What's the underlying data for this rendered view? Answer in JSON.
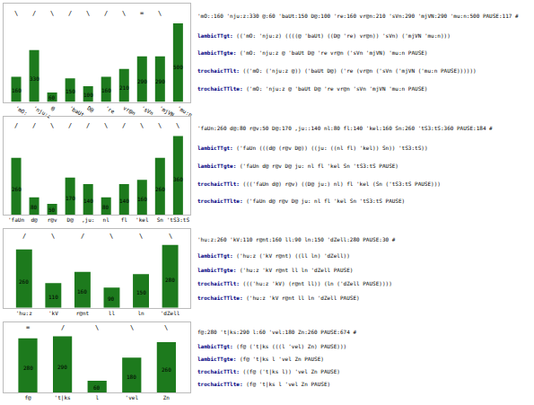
{
  "chart_data": [
    {
      "type": "bar",
      "categories": [
        "'mO:",
        "'nju:z",
        "@",
        "'baUt",
        "D@",
        "'re",
        "vr@n",
        "'sVn",
        "'mjVN",
        "'mu:n"
      ],
      "values": [
        160,
        330,
        60,
        150,
        100,
        160,
        210,
        290,
        290,
        500
      ],
      "color": "#1d7a1d",
      "data_labels": true,
      "grid": false,
      "tick_labels": "x",
      "ylim": [
        0,
        625
      ],
      "annotations": [
        {
          "category": "'mO:",
          "text": "\\"
        },
        {
          "category": "'nju:z",
          "text": "/"
        },
        {
          "category": "@",
          "text": "\\"
        },
        {
          "category": "'baUt",
          "text": "/"
        },
        {
          "category": "D@",
          "text": "\\"
        },
        {
          "category": "'re",
          "text": "/"
        },
        {
          "category": "vr@n",
          "text": "\\"
        },
        {
          "category": "'sVn",
          "text": "="
        },
        {
          "category": "'mjVN",
          "text": "\\"
        }
      ],
      "text_panel": {
        "color": "#000000",
        "prefix_color": "#000080",
        "top": "'mO::160 'nju:z:330 @:60 'baUt:150 D@:100 're:160 vr@n:210 'sVn:290 'mjVN:290 'mu:n:500 PAUSE:117 #",
        "lines": [
          {
            "prefix": "lambicTTgt:",
            "rest": " (('mO: 'nju:z) ((((@ 'baUt) ((D@ 're) vr@n)) 'sVn) ('mjVN 'mu:n)))"
          },
          {
            "prefix": "lambicTTgte:",
            "rest": " ('mO: 'nju:z @ 'baUt D@ 're vr@n ('sVn 'mjVN) 'mu:n PAUSE)"
          },
          {
            "prefix": "trochaicTTlt:",
            "rest": " (('mO: ('nju:z @)) ('baUt D@) ('re (vr@n ('sVn ('mjVN ('mu:n PAUSE))))))"
          },
          {
            "prefix": "trochaicTTlte:",
            "rest": " ('mO: 'nju:z @ 'baUt D@ 're vr@n 'sVn 'mjVN 'mu:n PAUSE)"
          }
        ]
      }
    },
    {
      "type": "bar",
      "categories": [
        "'faUn",
        "d@",
        "r@v",
        "D@",
        ",ju:",
        "nl",
        "fl",
        "'kel",
        "Sn",
        "'tS3:tS"
      ],
      "values": [
        260,
        80,
        50,
        170,
        140,
        80,
        140,
        160,
        260,
        360
      ],
      "color": "#1d7a1d",
      "data_labels": true,
      "grid": false,
      "tick_labels": "x",
      "ylim": [
        0,
        450
      ],
      "annotations": [
        {
          "category": "'faUn",
          "text": "/"
        },
        {
          "category": "d@",
          "text": "/"
        },
        {
          "category": "r@v",
          "text": "\\"
        },
        {
          "category": "D@",
          "text": "/"
        },
        {
          "category": ",ju:",
          "text": "/"
        },
        {
          "category": "nl",
          "text": "\\"
        },
        {
          "category": "fl",
          "text": "/"
        },
        {
          "category": "'kel",
          "text": "\\"
        },
        {
          "category": "Sn",
          "text": "\\"
        },
        {
          "category": "'tS3:tS",
          "text": "\\"
        }
      ],
      "text_panel": {
        "color": "#000000",
        "prefix_color": "#000080",
        "top": "'faUn:260 d@:80 r@v:50 D@:170 ,ju::140 nl:80 fl:140 'kel:160 Sn:260 'tS3:tS:360 PAUSE:184 #",
        "lines": [
          {
            "prefix": "lambicTTgt:",
            "rest": " ('faUn (((d@ (r@v D@)) ((ju: ((nl fl) 'kel)) Sn)) 'tS3:tS))"
          },
          {
            "prefix": "lambicTTgte:",
            "rest": " ('faUn d@ r@v D@ ju: nl fl 'kel Sn 'tS3:tS PAUSE)"
          },
          {
            "prefix": "trochaicTTlt:",
            "rest": " ((('faUn d@) r@v) ((D@ ju:) nl) fl 'kel (Sn ('tS3:tS PAUSE)))"
          },
          {
            "prefix": "trochaicTTlte:",
            "rest": " ('faUn d@ r@v D@ ju: nl fl 'kel Sn 'tS3:tS PAUSE)"
          }
        ]
      }
    },
    {
      "type": "bar",
      "categories": [
        "'hu:z",
        "'kV",
        "r@nt",
        "ll",
        "ln",
        "'dZell"
      ],
      "values": [
        260,
        110,
        160,
        90,
        150,
        280
      ],
      "color": "#1d7a1d",
      "data_labels": true,
      "grid": false,
      "tick_labels": "x",
      "ylim": [
        0,
        350
      ],
      "annotations": [
        {
          "category": "'hu:z",
          "text": "/"
        },
        {
          "category": "'kV",
          "text": "\\"
        },
        {
          "category": "r@nt",
          "text": "/"
        },
        {
          "category": "ll",
          "text": "\\"
        },
        {
          "category": "ln",
          "text": "\\"
        },
        {
          "category": "'dZell",
          "text": "\\"
        }
      ],
      "text_panel": {
        "color": "#000000",
        "prefix_color": "#000080",
        "top": "'hu:z:260 'kV:110 r@nt:160 ll:90 ln:150 'dZell:280 PAUSE:30 #",
        "lines": [
          {
            "prefix": "lambicTTgt:",
            "rest": " ('hu:z ('kV r@nt) ((ll ln) 'dZell))"
          },
          {
            "prefix": "lambicTTgte:",
            "rest": " ('hu:z 'kV r@nt ll ln 'dZell PAUSE)"
          },
          {
            "prefix": "trochaicTTlt:",
            "rest": " ((('hu:z 'kV) (r@nt ll)) (ln ('dZell PAUSE))))"
          },
          {
            "prefix": "trochaicTTlte:",
            "rest": " ('hu:z 'kV r@nt ll ln 'dZell PAUSE)"
          }
        ]
      }
    },
    {
      "type": "bar",
      "categories": [
        "f@",
        "'t|ks",
        "l",
        "'vel",
        "Zn"
      ],
      "values": [
        280,
        290,
        60,
        180,
        260
      ],
      "color": "#1d7a1d",
      "data_labels": true,
      "grid": false,
      "tick_labels": "x",
      "ylim": [
        0,
        362.5
      ],
      "annotations": [
        {
          "category": "f@",
          "text": "="
        },
        {
          "category": "'t|ks",
          "text": "/"
        },
        {
          "category": "l",
          "text": "\\"
        },
        {
          "category": "'vel",
          "text": "\\"
        },
        {
          "category": "Zn",
          "text": "\\"
        }
      ],
      "text_panel": {
        "color": "#000000",
        "prefix_color": "#000080",
        "top": "f@:280 't|ks:290 l:60 'vel:180 Zn:260 PAUSE:674 #",
        "lines": [
          {
            "prefix": "lambicTTgt:",
            "rest": " (f@ ('t|ks (((l 'vel) Zn) PAUSE)))"
          },
          {
            "prefix": "lambicTTgte:",
            "rest": " (f@ 't|ks l 'vel Zn PAUSE)"
          },
          {
            "prefix": "trochaicTTlt:",
            "rest": " ((f@ ('t|ks l)) 'vel Zn PAUSE)"
          },
          {
            "prefix": "trochaicTTlte:",
            "rest": " (f@ 't|ks l 'vel Zn PAUSE)"
          }
        ]
      }
    }
  ]
}
